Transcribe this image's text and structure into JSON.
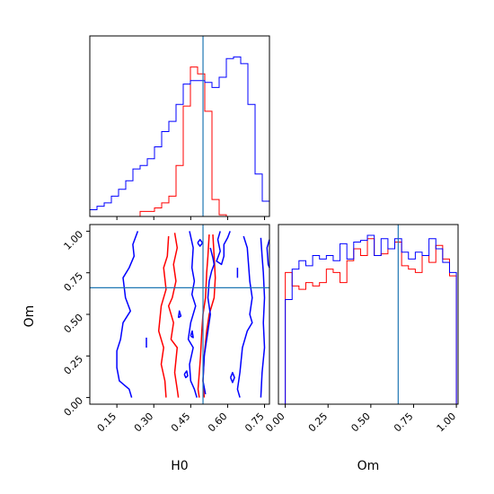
{
  "chart_data": {
    "type": "corner",
    "parameters": [
      "H0",
      "Om"
    ],
    "truths": {
      "H0": 0.5,
      "Om": 0.66
    },
    "series_colors": [
      "#ff0000",
      "#0000ff"
    ],
    "truth_color": "#1f77b4",
    "panels": {
      "h0_hist": {
        "type": "step-histogram",
        "xlim": [
          0.04,
          0.77
        ],
        "xticks": [
          0.15,
          0.3,
          0.45,
          0.6,
          0.75
        ],
        "bin_edges": [
          0.04,
          0.0692,
          0.0984,
          0.1276,
          0.1568,
          0.186,
          0.2152,
          0.2444,
          0.2736,
          0.3028,
          0.332,
          0.3612,
          0.3904,
          0.4196,
          0.4488,
          0.478,
          0.5072,
          0.5364,
          0.5656,
          0.5948,
          0.624,
          0.6532,
          0.6824,
          0.7116,
          0.7408,
          0.77
        ],
        "series": [
          {
            "color": "#ff0000",
            "values": [
              0,
              0,
              0,
              0,
              0,
              0,
              0,
              0.03,
              0.03,
              0.05,
              0.08,
              0.12,
              0.3,
              0.65,
              0.88,
              0.84,
              0.62,
              0.1,
              0.01,
              0,
              0,
              0,
              0,
              0,
              0
            ]
          },
          {
            "color": "#0000ff",
            "values": [
              0.04,
              0.06,
              0.08,
              0.12,
              0.16,
              0.21,
              0.28,
              0.3,
              0.34,
              0.41,
              0.5,
              0.56,
              0.66,
              0.78,
              0.8,
              0.8,
              0.79,
              0.76,
              0.82,
              0.93,
              0.94,
              0.9,
              0.66,
              0.25,
              0.09
            ]
          }
        ]
      },
      "om_hist": {
        "type": "step-histogram",
        "xlim": [
          -0.04,
          1.01
        ],
        "xticks": [
          0.0,
          0.25,
          0.5,
          0.75,
          1.0
        ],
        "bin_edges": [
          0,
          0.04,
          0.08,
          0.12,
          0.16,
          0.2,
          0.24,
          0.28,
          0.32,
          0.36,
          0.4,
          0.44,
          0.48,
          0.52,
          0.56,
          0.6,
          0.64,
          0.68,
          0.72,
          0.76,
          0.8,
          0.84,
          0.88,
          0.92,
          0.96,
          1.0
        ],
        "series": [
          {
            "color": "#ff0000",
            "values": [
              0.78,
              0.7,
              0.68,
              0.72,
              0.7,
              0.72,
              0.8,
              0.78,
              0.72,
              0.85,
              0.92,
              0.88,
              0.98,
              0.88,
              0.89,
              0.92,
              0.96,
              0.82,
              0.8,
              0.78,
              0.88,
              0.84,
              0.94,
              0.86,
              0.76
            ]
          },
          {
            "color": "#0000ff",
            "values": [
              0.62,
              0.8,
              0.85,
              0.82,
              0.88,
              0.86,
              0.88,
              0.85,
              0.95,
              0.86,
              0.96,
              0.97,
              1.0,
              0.88,
              0.98,
              0.92,
              0.98,
              0.9,
              0.86,
              0.9,
              0.88,
              0.98,
              0.92,
              0.84,
              0.78
            ]
          }
        ]
      },
      "joint": {
        "type": "contour",
        "xlim": [
          0.04,
          0.77
        ],
        "ylim": [
          -0.04,
          1.04
        ],
        "xticks": [
          0.15,
          0.3,
          0.45,
          0.6,
          0.75
        ],
        "yticks": [
          0.0,
          0.25,
          0.5,
          0.75,
          1.0
        ],
        "contours": [
          {
            "color": "#ff0000",
            "points": [
              [
                0.36,
                0.97
              ],
              [
                0.355,
                0.85
              ],
              [
                0.34,
                0.78
              ],
              [
                0.35,
                0.65
              ],
              [
                0.33,
                0.55
              ],
              [
                0.32,
                0.4
              ],
              [
                0.34,
                0.3
              ],
              [
                0.33,
                0.2
              ],
              [
                0.345,
                0.1
              ],
              [
                0.35,
                0.0
              ]
            ]
          },
          {
            "color": "#ff0000",
            "points": [
              [
                0.385,
                0.99
              ],
              [
                0.395,
                0.9
              ],
              [
                0.38,
                0.8
              ],
              [
                0.39,
                0.7
              ],
              [
                0.375,
                0.6
              ],
              [
                0.36,
                0.55
              ],
              [
                0.38,
                0.45
              ],
              [
                0.37,
                0.35
              ],
              [
                0.395,
                0.3
              ],
              [
                0.385,
                0.15
              ],
              [
                0.395,
                0.05
              ],
              [
                0.4,
                0.0
              ]
            ]
          },
          {
            "color": "#ff0000",
            "points": [
              [
                0.525,
                0.98
              ],
              [
                0.52,
                0.85
              ],
              [
                0.515,
                0.75
              ],
              [
                0.51,
                0.6
              ],
              [
                0.5,
                0.5
              ],
              [
                0.495,
                0.4
              ],
              [
                0.49,
                0.25
              ],
              [
                0.485,
                0.15
              ],
              [
                0.48,
                0.05
              ],
              [
                0.485,
                0.0
              ]
            ]
          },
          {
            "color": "#ff0000",
            "points": [
              [
                0.54,
                0.98
              ],
              [
                0.545,
                0.85
              ],
              [
                0.55,
                0.72
              ],
              [
                0.545,
                0.6
              ],
              [
                0.525,
                0.5
              ],
              [
                0.515,
                0.4
              ],
              [
                0.505,
                0.25
              ],
              [
                0.5,
                0.1
              ],
              [
                0.505,
                0.0
              ]
            ]
          },
          {
            "color": "#0000ff",
            "points": [
              [
                0.235,
                1.0
              ],
              [
                0.215,
                0.92
              ],
              [
                0.22,
                0.85
              ],
              [
                0.2,
                0.78
              ],
              [
                0.175,
                0.72
              ],
              [
                0.185,
                0.6
              ],
              [
                0.205,
                0.52
              ],
              [
                0.175,
                0.45
              ],
              [
                0.165,
                0.35
              ],
              [
                0.15,
                0.28
              ],
              [
                0.15,
                0.18
              ],
              [
                0.16,
                0.1
              ],
              [
                0.2,
                0.05
              ],
              [
                0.21,
                0.0
              ]
            ]
          },
          {
            "color": "#0000ff",
            "points": [
              [
                0.445,
                1.0
              ],
              [
                0.46,
                0.9
              ],
              [
                0.455,
                0.78
              ],
              [
                0.465,
                0.7
              ],
              [
                0.455,
                0.62
              ],
              [
                0.47,
                0.55
              ],
              [
                0.45,
                0.45
              ],
              [
                0.44,
                0.35
              ],
              [
                0.46,
                0.3
              ],
              [
                0.445,
                0.2
              ],
              [
                0.45,
                0.1
              ],
              [
                0.465,
                0.05
              ],
              [
                0.475,
                0.0
              ]
            ]
          },
          {
            "color": "#0000ff",
            "points": [
              [
                0.57,
                1.0
              ],
              [
                0.56,
                0.95
              ],
              [
                0.57,
                0.88
              ],
              [
                0.555,
                0.82
              ],
              [
                0.575,
                0.8
              ],
              [
                0.585,
                0.85
              ],
              [
                0.585,
                0.92
              ],
              [
                0.6,
                0.96
              ],
              [
                0.61,
                1.0
              ]
            ]
          },
          {
            "color": "#0000ff",
            "points": [
              [
                0.665,
                0.97
              ],
              [
                0.68,
                0.9
              ],
              [
                0.685,
                0.8
              ],
              [
                0.69,
                0.7
              ],
              [
                0.7,
                0.6
              ],
              [
                0.69,
                0.5
              ],
              [
                0.7,
                0.45
              ],
              [
                0.68,
                0.4
              ],
              [
                0.66,
                0.3
              ],
              [
                0.65,
                0.15
              ],
              [
                0.64,
                0.05
              ],
              [
                0.65,
                0.0
              ]
            ]
          },
          {
            "color": "#0000ff",
            "points": [
              [
                0.53,
                0.9
              ],
              [
                0.54,
                0.84
              ],
              [
                0.545,
                0.8
              ],
              [
                0.535,
                0.76
              ],
              [
                0.525,
                0.7
              ],
              [
                0.52,
                0.6
              ],
              [
                0.53,
                0.5
              ],
              [
                0.52,
                0.4
              ],
              [
                0.505,
                0.25
              ],
              [
                0.5,
                0.1
              ],
              [
                0.51,
                0.02
              ]
            ]
          },
          {
            "color": "#0000ff",
            "points": [
              [
                0.735,
                0.96
              ],
              [
                0.74,
                0.85
              ],
              [
                0.745,
                0.75
              ],
              [
                0.75,
                0.6
              ],
              [
                0.745,
                0.45
              ],
              [
                0.75,
                0.3
              ],
              [
                0.74,
                0.15
              ],
              [
                0.735,
                0.0
              ]
            ]
          },
          {
            "color": "#0000ff",
            "points": [
              [
                0.77,
                0.95
              ],
              [
                0.76,
                0.9
              ],
              [
                0.765,
                0.8
              ],
              [
                0.77,
                0.78
              ]
            ]
          },
          {
            "color": "#0000ff",
            "points": [
              [
                0.478,
                0.93
              ],
              [
                0.488,
                0.95
              ],
              [
                0.498,
                0.93
              ],
              [
                0.488,
                0.91
              ],
              [
                0.478,
                0.93
              ]
            ]
          },
          {
            "color": "#0000ff",
            "points": [
              [
                0.612,
                0.12
              ],
              [
                0.62,
                0.15
              ],
              [
                0.628,
                0.12
              ],
              [
                0.62,
                0.09
              ],
              [
                0.612,
                0.12
              ]
            ]
          },
          {
            "color": "#0000ff",
            "points": [
              [
                0.424,
                0.14
              ],
              [
                0.434,
                0.16
              ],
              [
                0.438,
                0.13
              ],
              [
                0.43,
                0.12
              ],
              [
                0.424,
                0.14
              ]
            ]
          },
          {
            "color": "#0000ff",
            "points": [
              [
                0.4,
                0.48
              ],
              [
                0.404,
                0.52
              ],
              [
                0.41,
                0.49
              ],
              [
                0.4,
                0.48
              ]
            ]
          },
          {
            "color": "#0000ff",
            "points": [
              [
                0.45,
                0.37
              ],
              [
                0.456,
                0.4
              ],
              [
                0.46,
                0.36
              ],
              [
                0.45,
                0.37
              ]
            ]
          },
          {
            "color": "#0000ff",
            "points": [
              [
                0.27,
                0.3
              ],
              [
                0.27,
                0.36
              ]
            ]
          },
          {
            "color": "#0000ff",
            "points": [
              [
                0.64,
                0.72
              ],
              [
                0.64,
                0.78
              ]
            ]
          }
        ]
      }
    }
  },
  "axes": {
    "x_label_left": "H0",
    "x_label_right": "Om",
    "y_label_joint": "Om",
    "h0_tick_labels": [
      "0.15",
      "0.30",
      "0.45",
      "0.60",
      "0.75"
    ],
    "om_tick_labels": [
      "0.00",
      "0.25",
      "0.50",
      "0.75",
      "1.00"
    ]
  }
}
